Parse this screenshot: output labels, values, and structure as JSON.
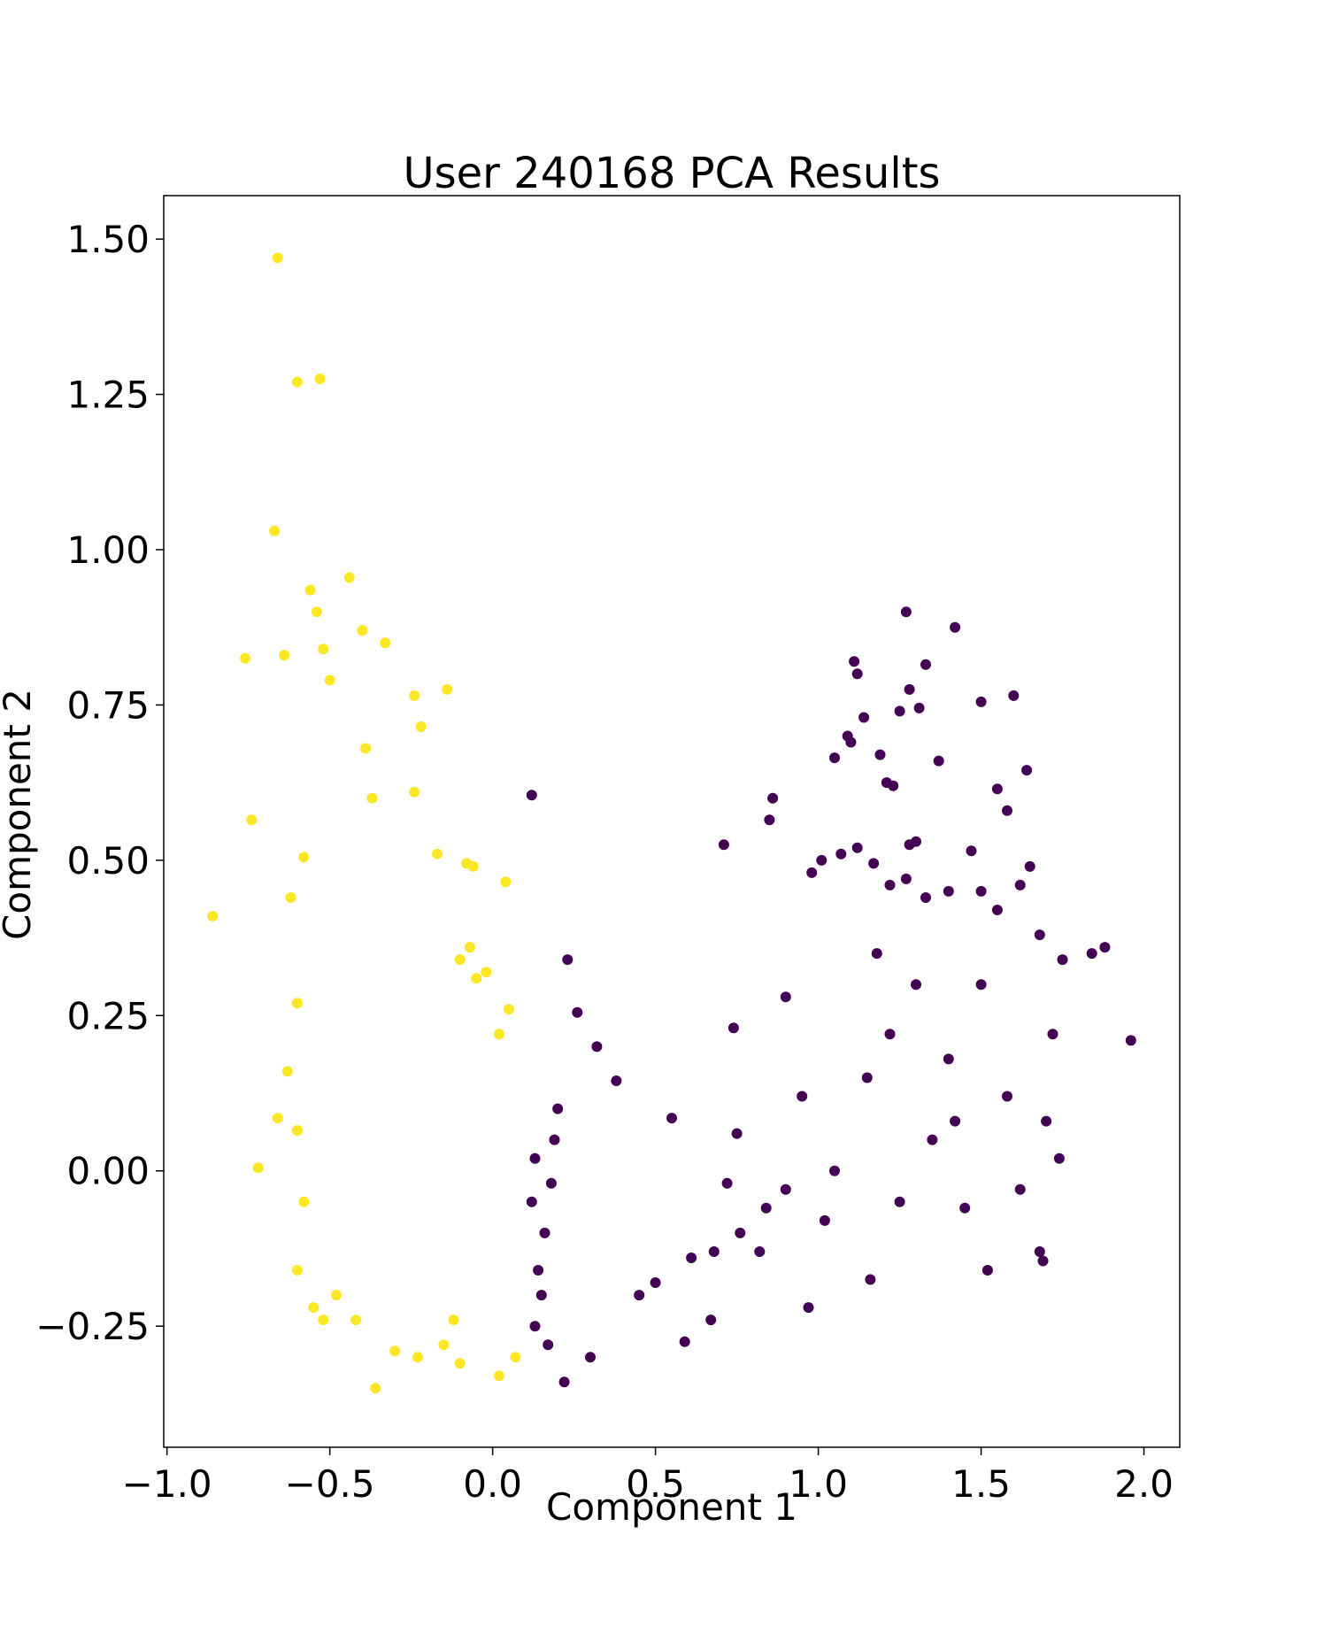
{
  "chart_data": {
    "type": "scatter",
    "title": "User 240168 PCA Results",
    "xlabel": "Component 1",
    "ylabel": "Component 2",
    "xlim": [
      -1.01,
      2.11
    ],
    "ylim": [
      -0.445,
      1.57
    ],
    "xticks": [
      -1.0,
      -0.5,
      0.0,
      0.5,
      1.0,
      1.5,
      2.0
    ],
    "xtick_labels": [
      "−1.0",
      "−0.5",
      "0.0",
      "0.5",
      "1.0",
      "1.5",
      "2.0"
    ],
    "yticks": [
      -0.25,
      0.0,
      0.25,
      0.5,
      0.75,
      1.0,
      1.25,
      1.5
    ],
    "ytick_labels": [
      "−0.25",
      "0.00",
      "0.25",
      "0.50",
      "0.75",
      "1.00",
      "1.25",
      "1.50"
    ],
    "grid": false,
    "series": [
      {
        "color": "#fde725",
        "points": [
          [
            -0.66,
            1.47
          ],
          [
            -0.6,
            1.27
          ],
          [
            -0.53,
            1.275
          ],
          [
            -0.67,
            1.03
          ],
          [
            -0.86,
            0.41
          ],
          [
            -0.76,
            0.825
          ],
          [
            -0.74,
            0.565
          ],
          [
            -0.72,
            0.005
          ],
          [
            -0.64,
            0.83
          ],
          [
            -0.56,
            0.935
          ],
          [
            -0.54,
            0.9
          ],
          [
            -0.52,
            0.84
          ],
          [
            -0.5,
            0.79
          ],
          [
            -0.44,
            0.955
          ],
          [
            -0.4,
            0.87
          ],
          [
            -0.39,
            0.68
          ],
          [
            -0.37,
            0.6
          ],
          [
            -0.33,
            0.85
          ],
          [
            -0.24,
            0.765
          ],
          [
            -0.22,
            0.715
          ],
          [
            -0.14,
            0.775
          ],
          [
            -0.17,
            0.51
          ],
          [
            -0.08,
            0.495
          ],
          [
            -0.06,
            0.49
          ],
          [
            0.04,
            0.465
          ],
          [
            -0.07,
            0.36
          ],
          [
            -0.24,
            0.61
          ],
          [
            -0.58,
            0.505
          ],
          [
            -0.62,
            0.44
          ],
          [
            -0.6,
            0.27
          ],
          [
            -0.63,
            0.16
          ],
          [
            -0.66,
            0.085
          ],
          [
            -0.6,
            0.065
          ],
          [
            -0.58,
            -0.05
          ],
          [
            -0.6,
            -0.16
          ],
          [
            -0.55,
            -0.22
          ],
          [
            -0.52,
            -0.24
          ],
          [
            -0.48,
            -0.2
          ],
          [
            -0.42,
            -0.24
          ],
          [
            -0.36,
            -0.35
          ],
          [
            -0.3,
            -0.29
          ],
          [
            -0.23,
            -0.3
          ],
          [
            -0.15,
            -0.28
          ],
          [
            -0.12,
            -0.24
          ],
          [
            -0.1,
            -0.31
          ],
          [
            0.02,
            -0.33
          ],
          [
            0.07,
            -0.3
          ],
          [
            0.02,
            0.22
          ],
          [
            0.05,
            0.26
          ],
          [
            -0.02,
            0.32
          ],
          [
            -0.05,
            0.31
          ],
          [
            -0.1,
            0.34
          ]
        ]
      },
      {
        "color": "#440154",
        "points": [
          [
            1.27,
            0.9
          ],
          [
            1.42,
            0.875
          ],
          [
            1.11,
            0.82
          ],
          [
            1.12,
            0.8
          ],
          [
            1.33,
            0.815
          ],
          [
            1.28,
            0.775
          ],
          [
            1.31,
            0.745
          ],
          [
            1.25,
            0.74
          ],
          [
            1.5,
            0.755
          ],
          [
            1.6,
            0.765
          ],
          [
            1.14,
            0.73
          ],
          [
            1.09,
            0.7
          ],
          [
            1.1,
            0.69
          ],
          [
            1.19,
            0.67
          ],
          [
            1.21,
            0.625
          ],
          [
            1.23,
            0.62
          ],
          [
            1.37,
            0.66
          ],
          [
            1.64,
            0.645
          ],
          [
            1.05,
            0.665
          ],
          [
            0.86,
            0.6
          ],
          [
            0.85,
            0.565
          ],
          [
            0.71,
            0.525
          ],
          [
            0.12,
            0.605
          ],
          [
            1.55,
            0.615
          ],
          [
            1.58,
            0.58
          ],
          [
            1.3,
            0.53
          ],
          [
            1.28,
            0.525
          ],
          [
            1.47,
            0.515
          ],
          [
            1.65,
            0.49
          ],
          [
            1.01,
            0.5
          ],
          [
            1.07,
            0.51
          ],
          [
            1.12,
            0.52
          ],
          [
            0.98,
            0.48
          ],
          [
            1.17,
            0.495
          ],
          [
            1.5,
            0.45
          ],
          [
            1.22,
            0.46
          ],
          [
            1.27,
            0.47
          ],
          [
            1.33,
            0.44
          ],
          [
            1.4,
            0.45
          ],
          [
            1.55,
            0.42
          ],
          [
            1.62,
            0.46
          ],
          [
            1.68,
            0.38
          ],
          [
            1.84,
            0.35
          ],
          [
            1.88,
            0.36
          ],
          [
            1.75,
            0.34
          ],
          [
            1.96,
            0.21
          ],
          [
            1.72,
            0.22
          ],
          [
            1.7,
            0.08
          ],
          [
            1.74,
            0.02
          ],
          [
            1.68,
            -0.13
          ],
          [
            1.69,
            -0.145
          ],
          [
            1.52,
            -0.16
          ],
          [
            1.16,
            -0.175
          ],
          [
            0.97,
            -0.22
          ],
          [
            0.9,
            -0.03
          ],
          [
            0.84,
            -0.06
          ],
          [
            0.82,
            -0.13
          ],
          [
            0.76,
            -0.1
          ],
          [
            0.75,
            0.06
          ],
          [
            0.74,
            0.23
          ],
          [
            0.72,
            -0.02
          ],
          [
            0.68,
            -0.13
          ],
          [
            0.61,
            -0.14
          ],
          [
            0.67,
            -0.24
          ],
          [
            0.59,
            -0.275
          ],
          [
            0.55,
            0.085
          ],
          [
            0.5,
            -0.18
          ],
          [
            0.45,
            -0.2
          ],
          [
            0.38,
            0.145
          ],
          [
            0.32,
            0.2
          ],
          [
            0.3,
            -0.3
          ],
          [
            0.22,
            -0.34
          ],
          [
            0.23,
            0.34
          ],
          [
            0.26,
            0.255
          ],
          [
            0.2,
            0.1
          ],
          [
            0.19,
            0.05
          ],
          [
            0.18,
            -0.02
          ],
          [
            0.16,
            -0.1
          ],
          [
            0.14,
            -0.16
          ],
          [
            0.15,
            -0.2
          ],
          [
            0.13,
            -0.25
          ],
          [
            0.12,
            -0.05
          ],
          [
            0.13,
            0.02
          ],
          [
            0.17,
            -0.28
          ],
          [
            1.4,
            0.18
          ],
          [
            1.3,
            0.3
          ],
          [
            1.15,
            0.15
          ],
          [
            1.05,
            0.0
          ],
          [
            1.25,
            -0.05
          ],
          [
            1.45,
            -0.06
          ],
          [
            1.35,
            0.05
          ],
          [
            0.95,
            0.12
          ],
          [
            1.02,
            -0.08
          ],
          [
            1.22,
            0.22
          ],
          [
            1.58,
            0.12
          ],
          [
            1.62,
            -0.03
          ],
          [
            1.5,
            0.3
          ],
          [
            0.9,
            0.28
          ],
          [
            1.18,
            0.35
          ],
          [
            1.42,
            0.08
          ]
        ]
      }
    ]
  }
}
